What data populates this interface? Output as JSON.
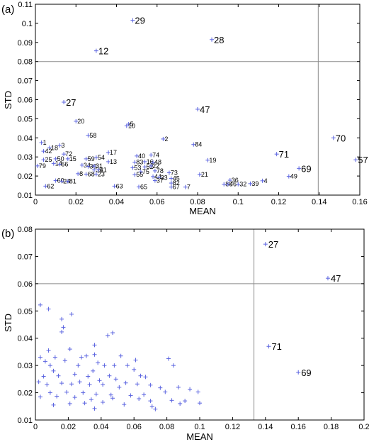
{
  "chart_data": [
    {
      "type": "scatter",
      "panel_label": "(a)",
      "xlabel": "MEAN",
      "ylabel": "STD",
      "xlim": [
        0,
        0.16
      ],
      "ylim": [
        0.01,
        0.11
      ],
      "xticks": [
        "0",
        "0.02",
        "0.04",
        "0.06",
        "0.08",
        "0.1",
        "0.12",
        "0.14",
        "0.16"
      ],
      "yticks": [
        "0.01",
        "0.02",
        "0.03",
        "0.04",
        "0.05",
        "0.06",
        "0.07",
        "0.08",
        "0.09",
        "0.1",
        "0.11"
      ],
      "reference_lines": {
        "x": 0.1395,
        "y": 0.08
      },
      "points": [
        {
          "label": "29",
          "x": 0.048,
          "y": 0.1016,
          "big": true
        },
        {
          "label": "28",
          "x": 0.087,
          "y": 0.0915,
          "big": true
        },
        {
          "label": "12",
          "x": 0.03,
          "y": 0.0856,
          "big": true
        },
        {
          "label": "27",
          "x": 0.014,
          "y": 0.0587,
          "big": true
        },
        {
          "label": "47",
          "x": 0.08,
          "y": 0.055,
          "big": true
        },
        {
          "label": "70",
          "x": 0.147,
          "y": 0.04,
          "big": true
        },
        {
          "label": "71",
          "x": 0.119,
          "y": 0.0315,
          "big": true
        },
        {
          "label": "69",
          "x": 0.13,
          "y": 0.024,
          "big": true
        },
        {
          "label": "57",
          "x": 0.158,
          "y": 0.0285,
          "big": true
        },
        {
          "label": "20",
          "x": 0.02,
          "y": 0.0487
        },
        {
          "label": "5",
          "x": 0.046,
          "y": 0.0472
        },
        {
          "label": "10",
          "x": 0.045,
          "y": 0.0463
        },
        {
          "label": "58",
          "x": 0.026,
          "y": 0.0413
        },
        {
          "label": "2",
          "x": 0.063,
          "y": 0.0394
        },
        {
          "label": "1",
          "x": 0.003,
          "y": 0.0375
        },
        {
          "label": "3",
          "x": 0.012,
          "y": 0.036
        },
        {
          "label": "18",
          "x": 0.007,
          "y": 0.0348
        },
        {
          "label": "84",
          "x": 0.078,
          "y": 0.0365
        },
        {
          "label": "42",
          "x": 0.004,
          "y": 0.033
        },
        {
          "label": "72",
          "x": 0.014,
          "y": 0.0315
        },
        {
          "label": "17",
          "x": 0.036,
          "y": 0.0323
        },
        {
          "label": "40",
          "x": 0.05,
          "y": 0.0305
        },
        {
          "label": "74",
          "x": 0.057,
          "y": 0.031
        },
        {
          "label": "25",
          "x": 0.004,
          "y": 0.0285
        },
        {
          "label": "50",
          "x": 0.01,
          "y": 0.029
        },
        {
          "label": "15",
          "x": 0.016,
          "y": 0.029
        },
        {
          "label": "59",
          "x": 0.025,
          "y": 0.029
        },
        {
          "label": "54",
          "x": 0.03,
          "y": 0.0297
        },
        {
          "label": "13",
          "x": 0.036,
          "y": 0.0275
        },
        {
          "label": "83",
          "x": 0.049,
          "y": 0.0272
        },
        {
          "label": "16",
          "x": 0.054,
          "y": 0.0275
        },
        {
          "label": "48",
          "x": 0.058,
          "y": 0.0272
        },
        {
          "label": "19",
          "x": 0.085,
          "y": 0.0283
        },
        {
          "label": "14",
          "x": 0.009,
          "y": 0.0265
        },
        {
          "label": "66",
          "x": 0.012,
          "y": 0.0262
        },
        {
          "label": "34",
          "x": 0.023,
          "y": 0.0257
        },
        {
          "label": "30",
          "x": 0.026,
          "y": 0.025
        },
        {
          "label": "31",
          "x": 0.029,
          "y": 0.0252
        },
        {
          "label": "53",
          "x": 0.048,
          "y": 0.0243
        },
        {
          "label": "52",
          "x": 0.054,
          "y": 0.0248
        },
        {
          "label": "22",
          "x": 0.057,
          "y": 0.0253
        },
        {
          "label": "79",
          "x": 0.001,
          "y": 0.0253
        },
        {
          "label": "35",
          "x": 0.029,
          "y": 0.0232
        },
        {
          "label": "41",
          "x": 0.031,
          "y": 0.0232
        },
        {
          "label": "75",
          "x": 0.052,
          "y": 0.0222
        },
        {
          "label": "78",
          "x": 0.059,
          "y": 0.0227
        },
        {
          "label": "73",
          "x": 0.066,
          "y": 0.0217
        },
        {
          "label": "21",
          "x": 0.081,
          "y": 0.0208
        },
        {
          "label": "8",
          "x": 0.021,
          "y": 0.0212
        },
        {
          "label": "68",
          "x": 0.025,
          "y": 0.021
        },
        {
          "label": "23",
          "x": 0.03,
          "y": 0.021
        },
        {
          "label": "55",
          "x": 0.049,
          "y": 0.0207
        },
        {
          "label": "44",
          "x": 0.058,
          "y": 0.0197
        },
        {
          "label": "33",
          "x": 0.061,
          "y": 0.0192
        },
        {
          "label": "45",
          "x": 0.067,
          "y": 0.0187
        },
        {
          "label": "37",
          "x": 0.059,
          "y": 0.0176
        },
        {
          "label": "36",
          "x": 0.096,
          "y": 0.0178
        },
        {
          "label": "4",
          "x": 0.112,
          "y": 0.0175
        },
        {
          "label": "49",
          "x": 0.125,
          "y": 0.0198
        },
        {
          "label": "60",
          "x": 0.01,
          "y": 0.0176
        },
        {
          "label": "24",
          "x": 0.013,
          "y": 0.0173
        },
        {
          "label": "81",
          "x": 0.016,
          "y": 0.0172
        },
        {
          "label": "62",
          "x": 0.005,
          "y": 0.0147
        },
        {
          "label": "63",
          "x": 0.039,
          "y": 0.0147
        },
        {
          "label": "65",
          "x": 0.051,
          "y": 0.0143
        },
        {
          "label": "82",
          "x": 0.067,
          "y": 0.0163
        },
        {
          "label": "67",
          "x": 0.067,
          "y": 0.0142
        },
        {
          "label": "7",
          "x": 0.074,
          "y": 0.0142
        },
        {
          "label": "80",
          "x": 0.093,
          "y": 0.0157
        },
        {
          "label": "46",
          "x": 0.095,
          "y": 0.0157
        },
        {
          "label": "32",
          "x": 0.1,
          "y": 0.0157
        },
        {
          "label": "39",
          "x": 0.106,
          "y": 0.016
        }
      ]
    },
    {
      "type": "scatter",
      "panel_label": "(b)",
      "xlabel": "MEAN",
      "ylabel": "STD",
      "xlim": [
        0,
        0.2
      ],
      "ylim": [
        0.01,
        0.08
      ],
      "xticks": [
        "0",
        "0.02",
        "0.04",
        "0.06",
        "0.08",
        "0.1",
        "0.12",
        "0.14",
        "0.16",
        "0.18",
        "0.2"
      ],
      "yticks": [
        "0.01",
        "0.02",
        "0.03",
        "0.04",
        "0.05",
        "0.06",
        "0.07",
        "0.08"
      ],
      "reference_lines": {
        "x": 0.133,
        "y": 0.06
      },
      "labeled_points": [
        {
          "label": "27",
          "x": 0.14,
          "y": 0.0745
        },
        {
          "label": "47",
          "x": 0.178,
          "y": 0.062
        },
        {
          "label": "71",
          "x": 0.142,
          "y": 0.037
        },
        {
          "label": "69",
          "x": 0.16,
          "y": 0.0275
        }
      ],
      "unlabeled_points": [
        [
          0.003,
          0.0522
        ],
        [
          0.008,
          0.0507
        ],
        [
          0.022,
          0.0488
        ],
        [
          0.016,
          0.047
        ],
        [
          0.017,
          0.044
        ],
        [
          0.016,
          0.0423
        ],
        [
          0.047,
          0.042
        ],
        [
          0.044,
          0.041
        ],
        [
          0.036,
          0.0375
        ],
        [
          0.008,
          0.0355
        ],
        [
          0.021,
          0.036
        ],
        [
          0.003,
          0.033
        ],
        [
          0.012,
          0.033
        ],
        [
          0.018,
          0.0318
        ],
        [
          0.006,
          0.0315
        ],
        [
          0.009,
          0.03
        ],
        [
          0.011,
          0.028
        ],
        [
          0.026,
          0.03
        ],
        [
          0.028,
          0.033
        ],
        [
          0.031,
          0.0335
        ],
        [
          0.036,
          0.034
        ],
        [
          0.038,
          0.031
        ],
        [
          0.042,
          0.03
        ],
        [
          0.048,
          0.03
        ],
        [
          0.052,
          0.0335
        ],
        [
          0.056,
          0.03
        ],
        [
          0.06,
          0.0285
        ],
        [
          0.061,
          0.032
        ],
        [
          0.081,
          0.0325
        ],
        [
          0.084,
          0.03
        ],
        [
          0.005,
          0.026
        ],
        [
          0.014,
          0.0262
        ],
        [
          0.024,
          0.0268
        ],
        [
          0.032,
          0.026
        ],
        [
          0.035,
          0.028
        ],
        [
          0.039,
          0.0245
        ],
        [
          0.045,
          0.0262
        ],
        [
          0.049,
          0.025
        ],
        [
          0.064,
          0.0262
        ],
        [
          0.067,
          0.0258
        ],
        [
          0.002,
          0.024
        ],
        [
          0.007,
          0.023
        ],
        [
          0.016,
          0.0235
        ],
        [
          0.022,
          0.0232
        ],
        [
          0.027,
          0.024
        ],
        [
          0.033,
          0.023
        ],
        [
          0.041,
          0.023
        ],
        [
          0.051,
          0.022
        ],
        [
          0.055,
          0.0236
        ],
        [
          0.062,
          0.0232
        ],
        [
          0.07,
          0.0228
        ],
        [
          0.076,
          0.0218
        ],
        [
          0.087,
          0.022
        ],
        [
          0.094,
          0.0213
        ],
        [
          0.009,
          0.02
        ],
        [
          0.019,
          0.0202
        ],
        [
          0.029,
          0.02
        ],
        [
          0.037,
          0.0195
        ],
        [
          0.046,
          0.0192
        ],
        [
          0.058,
          0.019
        ],
        [
          0.066,
          0.0193
        ],
        [
          0.079,
          0.0203
        ],
        [
          0.099,
          0.0203
        ],
        [
          0.003,
          0.0185
        ],
        [
          0.013,
          0.0187
        ],
        [
          0.024,
          0.0183
        ],
        [
          0.034,
          0.0175
        ],
        [
          0.047,
          0.018
        ],
        [
          0.063,
          0.0178
        ],
        [
          0.07,
          0.017
        ],
        [
          0.083,
          0.0172
        ],
        [
          0.091,
          0.017
        ],
        [
          0.011,
          0.0155
        ],
        [
          0.021,
          0.016
        ],
        [
          0.03,
          0.0162
        ],
        [
          0.041,
          0.0165
        ],
        [
          0.054,
          0.0157
        ],
        [
          0.071,
          0.015
        ],
        [
          0.088,
          0.016
        ],
        [
          0.1,
          0.0162
        ],
        [
          0.036,
          0.0142
        ],
        [
          0.073,
          0.014
        ]
      ]
    }
  ]
}
